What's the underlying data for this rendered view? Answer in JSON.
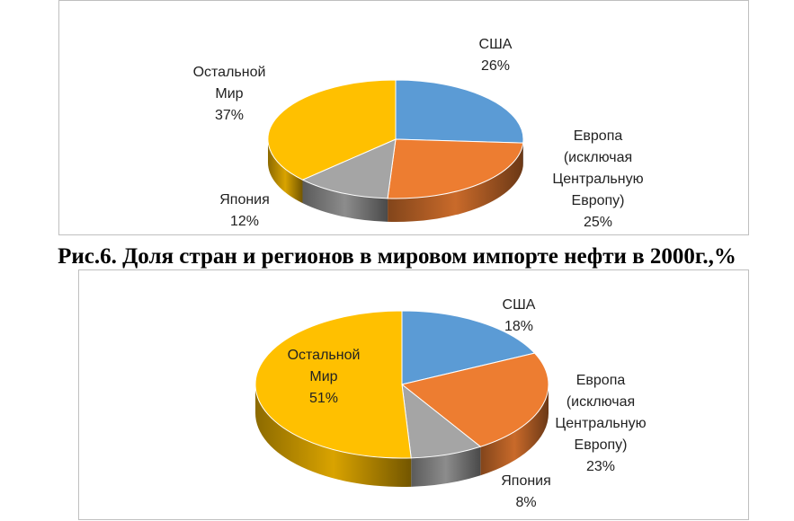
{
  "chart_data": [
    {
      "type": "pie",
      "caption": "Рис.6. Доля стран и регионов в мировом импорте нефти в 2000г.,%",
      "categories": [
        "США",
        "Европа (исключая Центральную Европу)",
        "Япония",
        "Остальной Мир"
      ],
      "values": [
        26,
        25,
        12,
        37
      ],
      "value_labels": [
        "26%",
        "25%",
        "12%",
        "37%"
      ],
      "colors": [
        "#5b9bd5",
        "#ed7d31",
        "#a5a5a5",
        "#ffc000"
      ]
    },
    {
      "type": "pie",
      "categories": [
        "США",
        "Европа (исключая Центральную Европу)",
        "Япония",
        "Остальной Мир"
      ],
      "values": [
        18,
        23,
        8,
        51
      ],
      "value_labels": [
        "18%",
        "23%",
        "8%",
        "51%"
      ],
      "colors": [
        "#5b9bd5",
        "#ed7d31",
        "#a5a5a5",
        "#ffc000"
      ]
    }
  ]
}
